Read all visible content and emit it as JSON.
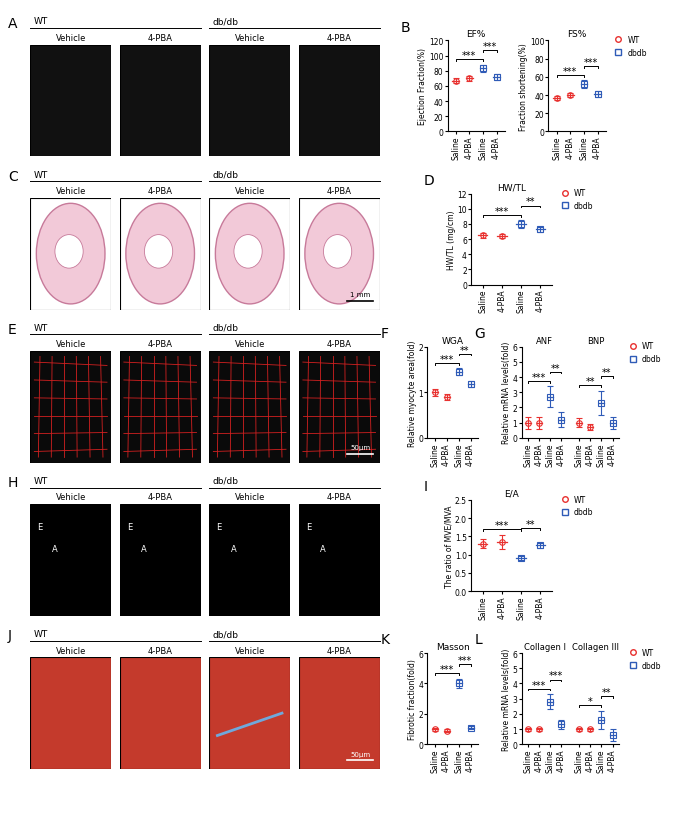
{
  "image_panels": [
    {
      "letter": "A",
      "groups": [
        "WT",
        "db/db"
      ],
      "conditions": [
        "Vehicle",
        "4-PBA",
        "Vehicle",
        "4-PBA"
      ]
    },
    {
      "letter": "C",
      "groups": [
        "WT",
        "db/db"
      ],
      "conditions": [
        "Vehicle",
        "4-PBA",
        "Vehicle",
        "4-PBA"
      ],
      "scale_bar": "1 mm"
    },
    {
      "letter": "E",
      "groups": [
        "WT",
        "db/db"
      ],
      "conditions": [
        "Vehicle",
        "4-PBA",
        "Vehicle",
        "4-PBA"
      ],
      "scale_bar": "50μm"
    },
    {
      "letter": "H",
      "groups": [
        "WT",
        "db/db"
      ],
      "conditions": [
        "Vehicle",
        "4-PBA",
        "Vehicle",
        "4-PBA"
      ],
      "wave_labels": [
        "E",
        "A"
      ]
    },
    {
      "letter": "J",
      "groups": [
        "WT",
        "db/db"
      ],
      "conditions": [
        "Vehicle",
        "4-PBA",
        "Vehicle",
        "4-PBA"
      ],
      "scale_bar": "50μm"
    }
  ],
  "chart_data": [
    {
      "letter": "B",
      "type": "scatter",
      "title": "EF%",
      "ylabel": "Ejection Fraction(%)",
      "categories": [
        "Saline",
        "4-PBA",
        "Saline",
        "4-PBA"
      ],
      "series": [
        {
          "name": "WT",
          "color": "#e8312f",
          "marker": "o",
          "values": [
            67,
            70,
            null,
            null
          ],
          "sd": [
            3,
            3,
            null,
            null
          ]
        },
        {
          "name": "dbdb",
          "color": "#2f5bb7",
          "marker": "s",
          "values": [
            null,
            null,
            83,
            72
          ],
          "sd": [
            null,
            null,
            5,
            4
          ]
        }
      ],
      "ylim": [
        0,
        120
      ],
      "yticks": [
        0,
        20,
        40,
        60,
        80,
        100,
        120
      ],
      "significance": [
        {
          "from": 0,
          "to": 2,
          "label": "***"
        },
        {
          "from": 2,
          "to": 3,
          "label": "***"
        }
      ]
    },
    {
      "type": "scatter",
      "title": "FS%",
      "ylabel": "Fraction shortening(%)",
      "categories": [
        "Saline",
        "4-PBA",
        "Saline",
        "4-PBA"
      ],
      "series": [
        {
          "name": "WT",
          "color": "#e8312f",
          "marker": "o",
          "values": [
            37,
            40,
            null,
            null
          ],
          "sd": [
            2,
            2,
            null,
            null
          ]
        },
        {
          "name": "dbdb",
          "color": "#2f5bb7",
          "marker": "s",
          "values": [
            null,
            null,
            52,
            41
          ],
          "sd": [
            null,
            null,
            4,
            3
          ]
        }
      ],
      "ylim": [
        0,
        100
      ],
      "yticks": [
        0,
        20,
        40,
        60,
        80,
        100
      ],
      "significance": [
        {
          "from": 0,
          "to": 2,
          "label": "***"
        },
        {
          "from": 2,
          "to": 3,
          "label": "***"
        }
      ],
      "legend": "upper left"
    },
    {
      "letter": "D",
      "type": "scatter",
      "title": "HW/TL",
      "ylabel": "HW/TL (mg/cm)",
      "categories": [
        "Saline",
        "4-PBA",
        "Saline",
        "4-PBA"
      ],
      "series": [
        {
          "name": "WT",
          "color": "#e8312f",
          "marker": "o",
          "values": [
            6.5,
            6.4,
            null,
            null
          ],
          "sd": [
            0.3,
            0.3,
            null,
            null
          ]
        },
        {
          "name": "dbdb",
          "color": "#2f5bb7",
          "marker": "s",
          "values": [
            null,
            null,
            8.0,
            7.3
          ],
          "sd": [
            null,
            null,
            0.5,
            0.3
          ]
        }
      ],
      "ylim": [
        0,
        12
      ],
      "yticks": [
        0,
        2,
        4,
        6,
        8,
        10,
        12
      ],
      "significance": [
        {
          "from": 0,
          "to": 2,
          "label": "***"
        },
        {
          "from": 2,
          "to": 3,
          "label": "**"
        }
      ],
      "legend": "upper left"
    },
    {
      "letter": "F",
      "type": "scatter",
      "title": "WGA",
      "ylabel": "Relative myocyte area(fold)",
      "categories": [
        "Saline",
        "4-PBA",
        "Saline",
        "4-PBA"
      ],
      "series": [
        {
          "name": "WT",
          "color": "#e8312f",
          "marker": "o",
          "values": [
            1.0,
            0.9,
            null,
            null
          ],
          "sd": [
            0.08,
            0.07,
            null,
            null
          ]
        },
        {
          "name": "dbdb",
          "color": "#2f5bb7",
          "marker": "s",
          "values": [
            null,
            null,
            1.45,
            1.18
          ],
          "sd": [
            null,
            null,
            0.08,
            0.06
          ]
        }
      ],
      "ylim": [
        0,
        2
      ],
      "yticks": [
        0,
        1,
        2
      ],
      "significance": [
        {
          "from": 0,
          "to": 2,
          "label": "***"
        },
        {
          "from": 2,
          "to": 3,
          "label": "**"
        }
      ]
    },
    {
      "letter": "G",
      "type": "scatter",
      "groups": [
        "ANF",
        "BNP"
      ],
      "ylabel": "Relative mRNA levels(fold)",
      "categories": [
        "Saline",
        "4-PBA",
        "Saline",
        "4-PBA",
        "Saline",
        "4-PBA",
        "Saline",
        "4-PBA"
      ],
      "series": [
        {
          "name": "WT",
          "color": "#e8312f",
          "marker": "o",
          "values": [
            1.0,
            1.0,
            null,
            null,
            1.0,
            0.7,
            null,
            null
          ],
          "sd": [
            0.4,
            0.4,
            null,
            null,
            0.3,
            0.2,
            null,
            null
          ]
        },
        {
          "name": "dbdb",
          "color": "#2f5bb7",
          "marker": "s",
          "values": [
            null,
            null,
            2.7,
            1.2,
            null,
            null,
            2.3,
            1.0
          ],
          "sd": [
            null,
            null,
            0.7,
            0.5,
            null,
            null,
            0.8,
            0.4
          ]
        }
      ],
      "ylim": [
        0,
        6
      ],
      "yticks": [
        0,
        1,
        2,
        3,
        4,
        5,
        6
      ],
      "significance": [
        {
          "from": 0,
          "to": 2,
          "label": "***"
        },
        {
          "from": 2,
          "to": 3,
          "label": "**"
        },
        {
          "from": 4,
          "to": 6,
          "label": "**"
        },
        {
          "from": 6,
          "to": 7,
          "label": "**"
        }
      ],
      "legend": "upper left"
    },
    {
      "letter": "I",
      "type": "scatter",
      "title": "E/A",
      "ylabel": "The ratio of MVE/MVA",
      "categories": [
        "Saline",
        "4-PBA",
        "Saline",
        "4-PBA"
      ],
      "series": [
        {
          "name": "WT",
          "color": "#e8312f",
          "marker": "o",
          "values": [
            1.3,
            1.35,
            null,
            null
          ],
          "sd": [
            0.12,
            0.2,
            null,
            null
          ]
        },
        {
          "name": "dbdb",
          "color": "#2f5bb7",
          "marker": "s",
          "values": [
            null,
            null,
            0.9,
            1.25
          ],
          "sd": [
            null,
            null,
            0.06,
            0.08
          ]
        }
      ],
      "ylim": [
        0,
        2.5
      ],
      "yticks": [
        {
          "value": 0,
          "label": "0.0"
        },
        {
          "value": 0.5,
          "label": "0.5"
        },
        {
          "value": 1,
          "label": "1.0"
        },
        {
          "value": 1.5,
          "label": "1.5"
        },
        {
          "value": 2,
          "label": "2.0"
        },
        {
          "value": 2.5,
          "label": "2.5"
        }
      ],
      "significance": [
        {
          "from": 0,
          "to": 2,
          "label": "***"
        },
        {
          "from": 2,
          "to": 3,
          "label": "**"
        }
      ],
      "legend": "upper left"
    },
    {
      "letter": "K",
      "type": "scatter",
      "title": "Masson",
      "ylabel": "Fibrotic fraction(fold)",
      "categories": [
        "Saline",
        "4-PBA",
        "Saline",
        "4-PBA"
      ],
      "series": [
        {
          "name": "WT",
          "color": "#e8312f",
          "marker": "o",
          "values": [
            1.0,
            0.9,
            null,
            null
          ],
          "sd": [
            0.1,
            0.1,
            null,
            null
          ]
        },
        {
          "name": "dbdb",
          "color": "#2f5bb7",
          "marker": "s",
          "values": [
            null,
            null,
            4.0,
            1.1
          ],
          "sd": [
            null,
            null,
            0.3,
            0.1
          ]
        }
      ],
      "ylim": [
        0,
        6
      ],
      "yticks": [
        0,
        2,
        4,
        6
      ],
      "significance": [
        {
          "from": 0,
          "to": 2,
          "label": "***"
        },
        {
          "from": 2,
          "to": 3,
          "label": "***"
        }
      ]
    },
    {
      "letter": "L",
      "type": "scatter",
      "groups": [
        "Collagen I",
        "Collagen III"
      ],
      "ylabel": "Relative mRNA levels(fold)",
      "categories": [
        "Saline",
        "4-PBA",
        "Saline",
        "4-PBA",
        "Saline",
        "4-PBA",
        "Saline",
        "4-PBA"
      ],
      "series": [
        {
          "name": "WT",
          "color": "#e8312f",
          "marker": "o",
          "values": [
            1.0,
            1.0,
            null,
            null,
            1.0,
            1.0,
            null,
            null
          ],
          "sd": [
            0.1,
            0.1,
            null,
            null,
            0.1,
            0.1,
            null,
            null
          ]
        },
        {
          "name": "dbdb",
          "color": "#2f5bb7",
          "marker": "s",
          "values": [
            null,
            null,
            2.8,
            1.3,
            null,
            null,
            1.6,
            0.6
          ],
          "sd": [
            null,
            null,
            0.5,
            0.3,
            null,
            null,
            0.6,
            0.4
          ]
        }
      ],
      "ylim": [
        0,
        6
      ],
      "yticks": [
        0,
        1,
        2,
        3,
        4,
        5,
        6
      ],
      "significance": [
        {
          "from": 0,
          "to": 2,
          "label": "***"
        },
        {
          "from": 2,
          "to": 3,
          "label": "***"
        },
        {
          "from": 4,
          "to": 6,
          "label": "*"
        },
        {
          "from": 6,
          "to": 7,
          "label": "**"
        }
      ],
      "legend": "upper left"
    }
  ]
}
